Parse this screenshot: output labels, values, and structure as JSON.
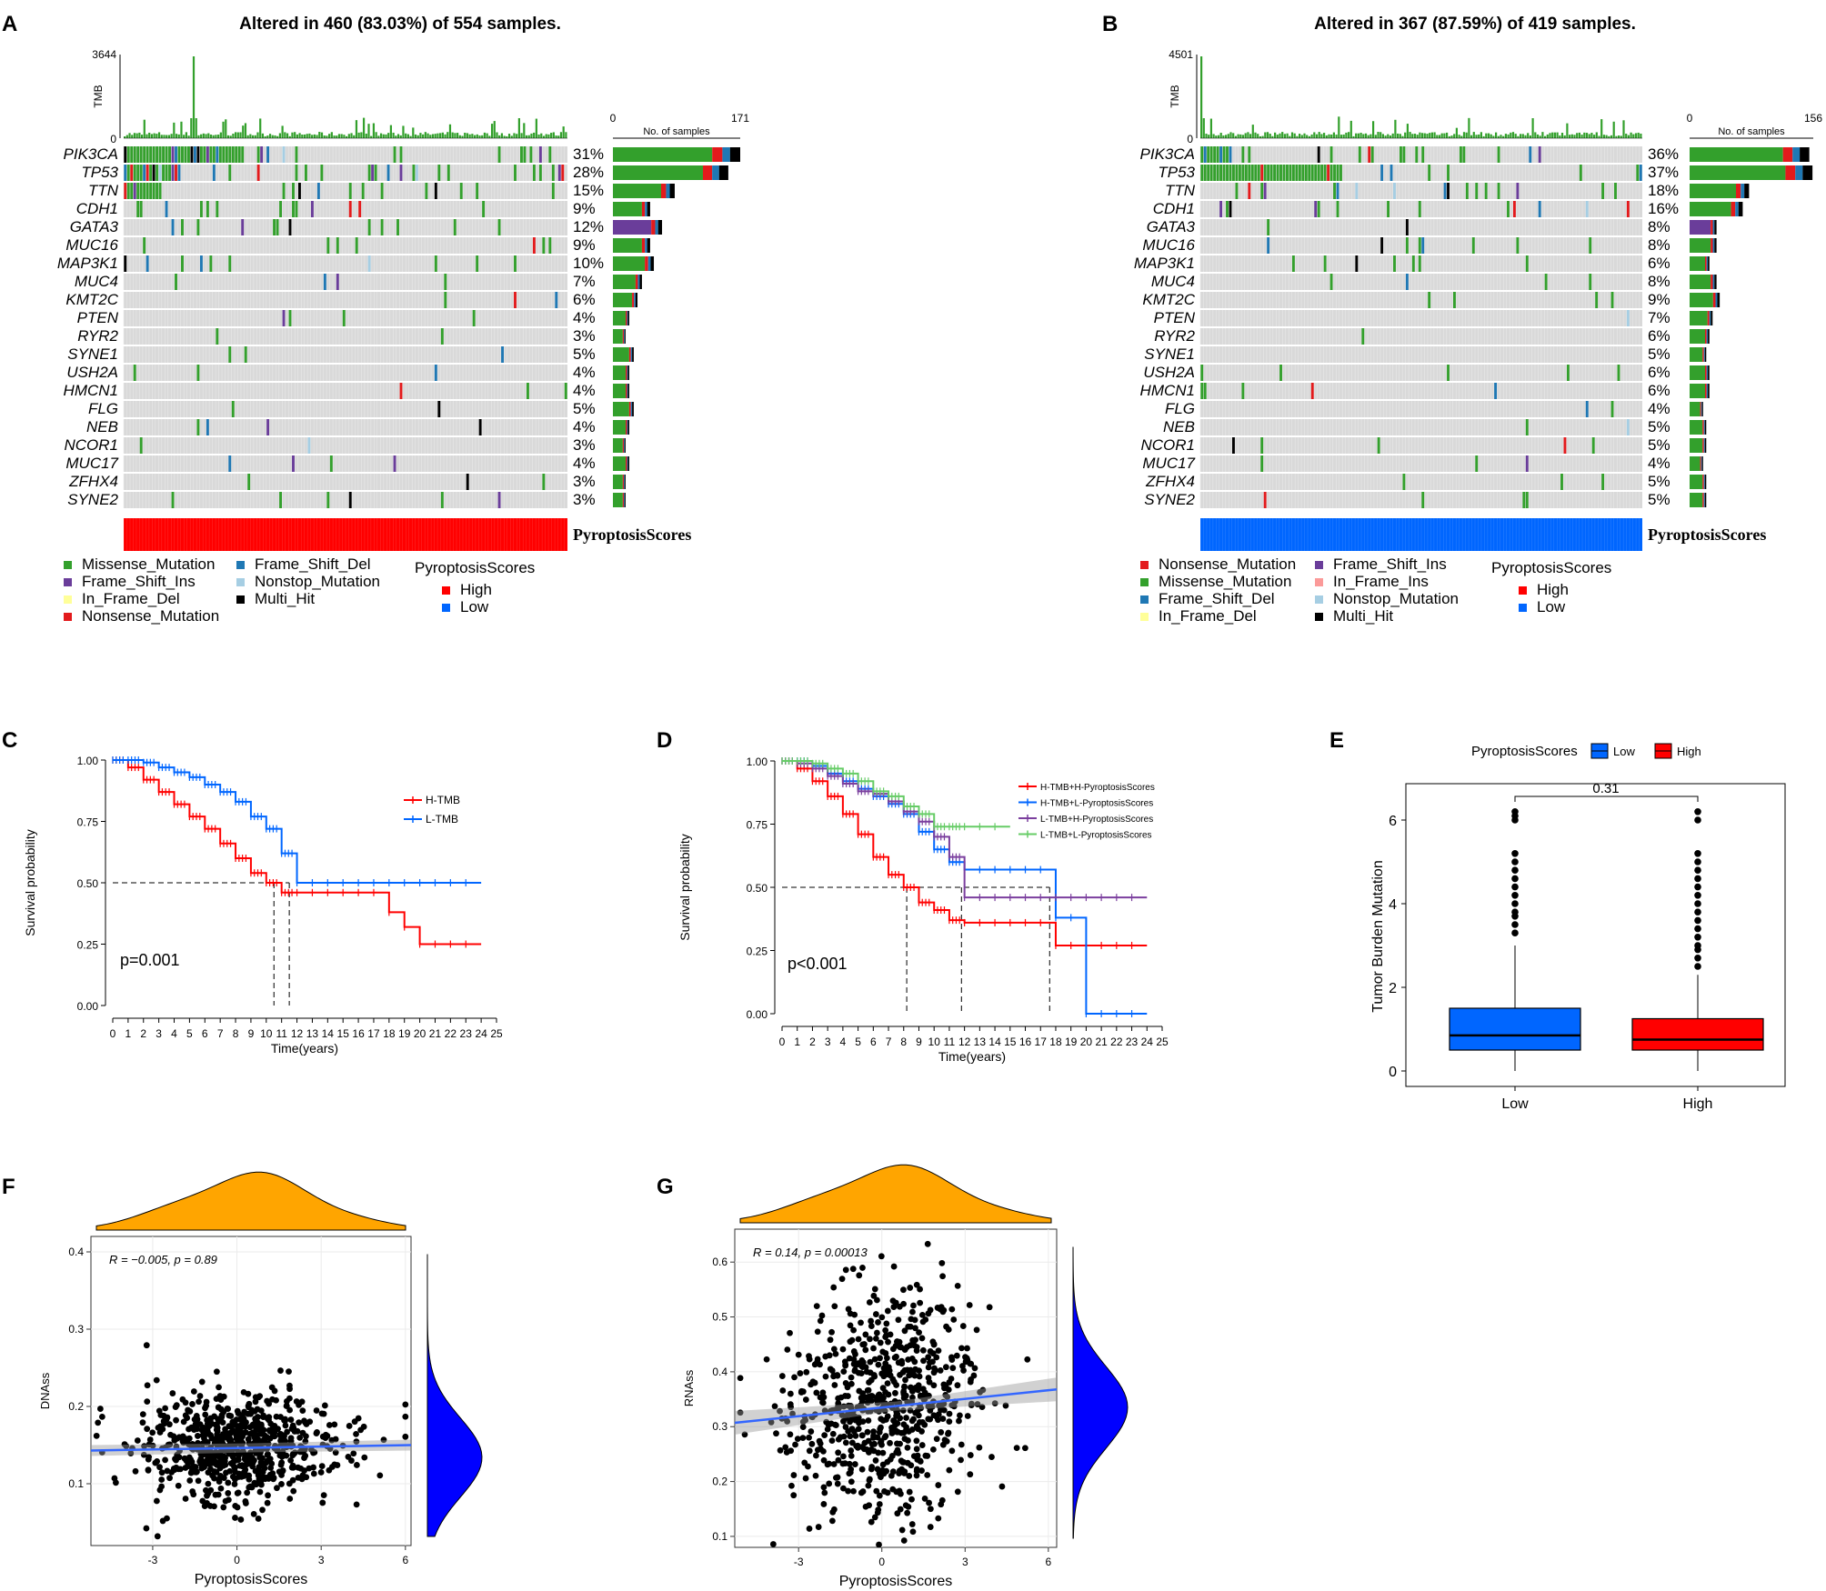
{
  "panel_labels": {
    "A": "A",
    "B": "B",
    "C": "C",
    "D": "D",
    "E": "E",
    "F": "F",
    "G": "G"
  },
  "colors": {
    "Missense_Mutation": "#33a02c",
    "Frame_Shift_Del": "#1f78b4",
    "Frame_Shift_Ins": "#6a3d9a",
    "In_Frame_Del": "#ffff99",
    "In_Frame_Ins": "#fb9a99",
    "Nonsense_Mutation": "#e31a1c",
    "Nonstop_Mutation": "#a6cee3",
    "Multi_Hit": "#000000",
    "High": "#ff0000",
    "Low": "#0066ff",
    "orange": "#ffa500",
    "density_blue": "#0000ff",
    "fit_line": "#3366ff"
  },
  "chart_data": [
    {
      "id": "A",
      "type": "oncoplot",
      "title": "Altered in 460 (83.03%) of 554 samples.",
      "tmb_label": "TMB",
      "tmb_max": "3644",
      "tmb_min": "0",
      "bar_axis": {
        "min": "0",
        "max": "171",
        "label": "No. of samples"
      },
      "genes": [
        "PIK3CA",
        "TP53",
        "TTN",
        "CDH1",
        "GATA3",
        "MUC16",
        "MAP3K1",
        "MUC4",
        "KMT2C",
        "PTEN",
        "RYR2",
        "SYNE1",
        "USH2A",
        "HMCN1",
        "FLG",
        "NEB",
        "NCOR1",
        "MUC17",
        "ZFHX4",
        "SYNE2"
      ],
      "percent": [
        "31%",
        "28%",
        "15%",
        "9%",
        "12%",
        "9%",
        "10%",
        "7%",
        "6%",
        "4%",
        "3%",
        "5%",
        "4%",
        "4%",
        "5%",
        "4%",
        "3%",
        "4%",
        "3%",
        "3%"
      ],
      "counts": [
        171,
        155,
        83,
        50,
        66,
        50,
        55,
        39,
        33,
        22,
        17,
        28,
        22,
        22,
        28,
        22,
        17,
        22,
        17,
        17
      ],
      "annotation_label": "PyroptosisScores",
      "annotation_value": "High",
      "legend": [
        "Missense_Mutation",
        "Frame_Shift_Ins",
        "In_Frame_Del",
        "Nonsense_Mutation",
        "Frame_Shift_Del",
        "Nonstop_Mutation",
        "Multi_Hit"
      ],
      "legend_title": "PyroptosisScores",
      "legend_levels": [
        "High",
        "Low"
      ]
    },
    {
      "id": "B",
      "type": "oncoplot",
      "title": "Altered in 367 (87.59%) of 419 samples.",
      "tmb_label": "TMB",
      "tmb_max": "4501",
      "tmb_min": "0",
      "bar_axis": {
        "min": "0",
        "max": "156",
        "label": "No. of samples"
      },
      "genes": [
        "PIK3CA",
        "TP53",
        "TTN",
        "CDH1",
        "GATA3",
        "MUC16",
        "MAP3K1",
        "MUC4",
        "KMT2C",
        "PTEN",
        "RYR2",
        "SYNE1",
        "USH2A",
        "HMCN1",
        "FLG",
        "NEB",
        "NCOR1",
        "MUC17",
        "ZFHX4",
        "SYNE2"
      ],
      "percent": [
        "36%",
        "37%",
        "18%",
        "16%",
        "8%",
        "8%",
        "6%",
        "8%",
        "9%",
        "7%",
        "6%",
        "5%",
        "6%",
        "6%",
        "4%",
        "5%",
        "5%",
        "4%",
        "5%",
        "5%"
      ],
      "counts": [
        151,
        155,
        75,
        67,
        34,
        34,
        25,
        34,
        38,
        29,
        25,
        21,
        25,
        25,
        17,
        21,
        21,
        17,
        21,
        21
      ],
      "annotation_label": "PyroptosisScores",
      "annotation_value": "Low",
      "legend": [
        "Nonsense_Mutation",
        "Missense_Mutation",
        "Frame_Shift_Del",
        "In_Frame_Del",
        "Frame_Shift_Ins",
        "In_Frame_Ins",
        "Nonstop_Mutation",
        "Multi_Hit"
      ],
      "legend_title": "PyroptosisScores",
      "legend_levels": [
        "High",
        "Low"
      ]
    },
    {
      "id": "C",
      "type": "line",
      "subtype": "kaplan-meier",
      "xlabel": "Time(years)",
      "ylabel": "Survival probability",
      "xlim": [
        0,
        25
      ],
      "ylim": [
        0,
        1
      ],
      "yticks": [
        "0.00",
        "0.25",
        "0.50",
        "0.75",
        "1.00"
      ],
      "xticks": [
        "0",
        "1",
        "2",
        "3",
        "4",
        "5",
        "6",
        "7",
        "8",
        "9",
        "10",
        "11",
        "12",
        "13",
        "14",
        "15",
        "16",
        "17",
        "18",
        "19",
        "20",
        "21",
        "22",
        "23",
        "24",
        "25"
      ],
      "pvalue": "p=0.001",
      "series": [
        {
          "name": "H-TMB",
          "color": "#ff0000",
          "x": [
            0,
            1,
            2,
            3,
            4,
            5,
            6,
            7,
            8,
            9,
            10,
            11,
            12,
            13,
            14,
            15,
            16,
            17,
            18,
            19,
            20,
            21,
            22,
            23,
            24
          ],
          "y": [
            1.0,
            0.97,
            0.92,
            0.87,
            0.82,
            0.77,
            0.72,
            0.66,
            0.6,
            0.54,
            0.5,
            0.46,
            0.46,
            0.46,
            0.46,
            0.46,
            0.46,
            0.46,
            0.38,
            0.32,
            0.25,
            0.25,
            0.25,
            0.25,
            0.25
          ]
        },
        {
          "name": "L-TMB",
          "color": "#0066ff",
          "x": [
            0,
            1,
            2,
            3,
            4,
            5,
            6,
            7,
            8,
            9,
            10,
            11,
            12,
            13,
            14,
            15,
            16,
            17,
            18,
            19,
            20,
            21,
            22,
            23,
            24
          ],
          "y": [
            1.0,
            1.0,
            0.99,
            0.97,
            0.95,
            0.93,
            0.9,
            0.87,
            0.83,
            0.77,
            0.72,
            0.62,
            0.5,
            0.5,
            0.5,
            0.5,
            0.5,
            0.5,
            0.5,
            0.5,
            0.5,
            0.5,
            0.5,
            0.5,
            0.5
          ]
        }
      ],
      "median_lines": [
        10.5,
        11.5
      ]
    },
    {
      "id": "D",
      "type": "line",
      "subtype": "kaplan-meier",
      "xlabel": "Time(years)",
      "ylabel": "Survival probability",
      "xlim": [
        0,
        25
      ],
      "ylim": [
        0,
        1
      ],
      "yticks": [
        "0.00",
        "0.25",
        "0.50",
        "0.75",
        "1.00"
      ],
      "xticks": [
        "0",
        "1",
        "2",
        "3",
        "4",
        "5",
        "6",
        "7",
        "8",
        "9",
        "10",
        "11",
        "12",
        "13",
        "14",
        "15",
        "16",
        "17",
        "18",
        "19",
        "20",
        "21",
        "22",
        "23",
        "24",
        "25"
      ],
      "pvalue": "p<0.001",
      "series": [
        {
          "name": "H-TMB+H-PyroptosisScores",
          "color": "#ff0000",
          "x": [
            0,
            1,
            2,
            3,
            4,
            5,
            6,
            7,
            8,
            9,
            10,
            11,
            12,
            13,
            14,
            15,
            16,
            17,
            18,
            19,
            20,
            21,
            22,
            23,
            24
          ],
          "y": [
            1.0,
            0.97,
            0.92,
            0.86,
            0.79,
            0.71,
            0.62,
            0.55,
            0.5,
            0.44,
            0.41,
            0.37,
            0.36,
            0.36,
            0.36,
            0.36,
            0.36,
            0.36,
            0.27,
            0.27,
            0.27,
            0.27,
            0.27,
            0.27,
            0.27
          ]
        },
        {
          "name": "H-TMB+L-PyroptosisScores",
          "color": "#0066ff",
          "x": [
            0,
            1,
            2,
            3,
            4,
            5,
            6,
            7,
            8,
            9,
            10,
            11,
            12,
            13,
            14,
            15,
            16,
            17,
            18,
            19,
            20,
            21,
            22,
            23,
            24
          ],
          "y": [
            1.0,
            1.0,
            0.98,
            0.95,
            0.92,
            0.89,
            0.86,
            0.83,
            0.79,
            0.72,
            0.65,
            0.6,
            0.57,
            0.57,
            0.57,
            0.57,
            0.57,
            0.57,
            0.38,
            0.38,
            0.0,
            0.0,
            0.0,
            0.0,
            0.0
          ]
        },
        {
          "name": "L-TMB+H-PyroptosisScores",
          "color": "#7b3f9e",
          "x": [
            0,
            1,
            2,
            3,
            4,
            5,
            6,
            7,
            8,
            9,
            10,
            11,
            12,
            13,
            14,
            15,
            16,
            17,
            18,
            19,
            20,
            21,
            22,
            23,
            24
          ],
          "y": [
            1.0,
            0.99,
            0.97,
            0.94,
            0.91,
            0.88,
            0.87,
            0.84,
            0.8,
            0.76,
            0.7,
            0.62,
            0.46,
            0.46,
            0.46,
            0.46,
            0.46,
            0.46,
            0.46,
            0.46,
            0.46,
            0.46,
            0.46,
            0.46,
            0.46
          ]
        },
        {
          "name": "L-TMB+L-PyroptosisScores",
          "color": "#66cc66",
          "x": [
            0,
            1,
            2,
            3,
            4,
            5,
            6,
            7,
            8,
            9,
            10,
            11,
            12,
            13,
            14,
            15
          ],
          "y": [
            1.0,
            1.0,
            0.99,
            0.97,
            0.95,
            0.92,
            0.88,
            0.86,
            0.82,
            0.79,
            0.74,
            0.74,
            0.74,
            0.74,
            0.74,
            0.74
          ]
        }
      ],
      "median_lines": [
        8.2,
        11.8,
        17.6
      ]
    },
    {
      "id": "E",
      "type": "box",
      "legend_title": "PyroptosisScores",
      "legend_levels": [
        "Low",
        "High"
      ],
      "ylabel": "Tumor Burden Mutation",
      "categories": [
        "Low",
        "High"
      ],
      "yticks": [
        "0",
        "2",
        "4",
        "6"
      ],
      "ylim": [
        0,
        6.5
      ],
      "pvalue": "0.31",
      "boxes": [
        {
          "name": "Low",
          "color": "#0066ff",
          "q1": 0.5,
          "median": 0.85,
          "q3": 1.5,
          "whisker_low": 0,
          "whisker_high": 3.0,
          "outliers": [
            3.3,
            3.5,
            3.7,
            3.8,
            4.0,
            4.2,
            4.4,
            4.6,
            4.8,
            5.0,
            5.2,
            6.0,
            6.1,
            6.2
          ]
        },
        {
          "name": "High",
          "color": "#ff0000",
          "q1": 0.5,
          "median": 0.75,
          "q3": 1.25,
          "whisker_low": 0,
          "whisker_high": 2.3,
          "outliers": [
            2.5,
            2.7,
            2.9,
            3.0,
            3.2,
            3.4,
            3.6,
            3.8,
            4.0,
            4.2,
            4.4,
            4.6,
            4.8,
            5.0,
            5.2,
            6.0,
            6.2
          ]
        }
      ]
    },
    {
      "id": "F",
      "type": "scatter",
      "annotation": "R = −0.005, p = 0.89",
      "xlabel": "PyroptosisScores",
      "ylabel": "DNAss",
      "xticks": [
        "-3",
        "0",
        "3",
        "6"
      ],
      "yticks": [
        "0.1",
        "0.2",
        "0.3",
        "0.4"
      ],
      "xlim": [
        -5.2,
        6.2
      ],
      "ylim": [
        0.02,
        0.42
      ],
      "fit": {
        "x0": -5.2,
        "y0": 0.143,
        "x1": 6.2,
        "y1": 0.15
      }
    },
    {
      "id": "G",
      "type": "scatter",
      "annotation": "R = 0.14, p = 0.00013",
      "xlabel": "PyroptosisScores",
      "ylabel": "RNAss",
      "xticks": [
        "-3",
        "0",
        "3",
        "6"
      ],
      "yticks": [
        "0.1",
        "0.2",
        "0.3",
        "0.4",
        "0.5",
        "0.6"
      ],
      "xlim": [
        -5.3,
        6.3
      ],
      "ylim": [
        0.08,
        0.66
      ],
      "fit": {
        "x0": -5.3,
        "y0": 0.307,
        "x1": 6.3,
        "y1": 0.368
      }
    }
  ]
}
